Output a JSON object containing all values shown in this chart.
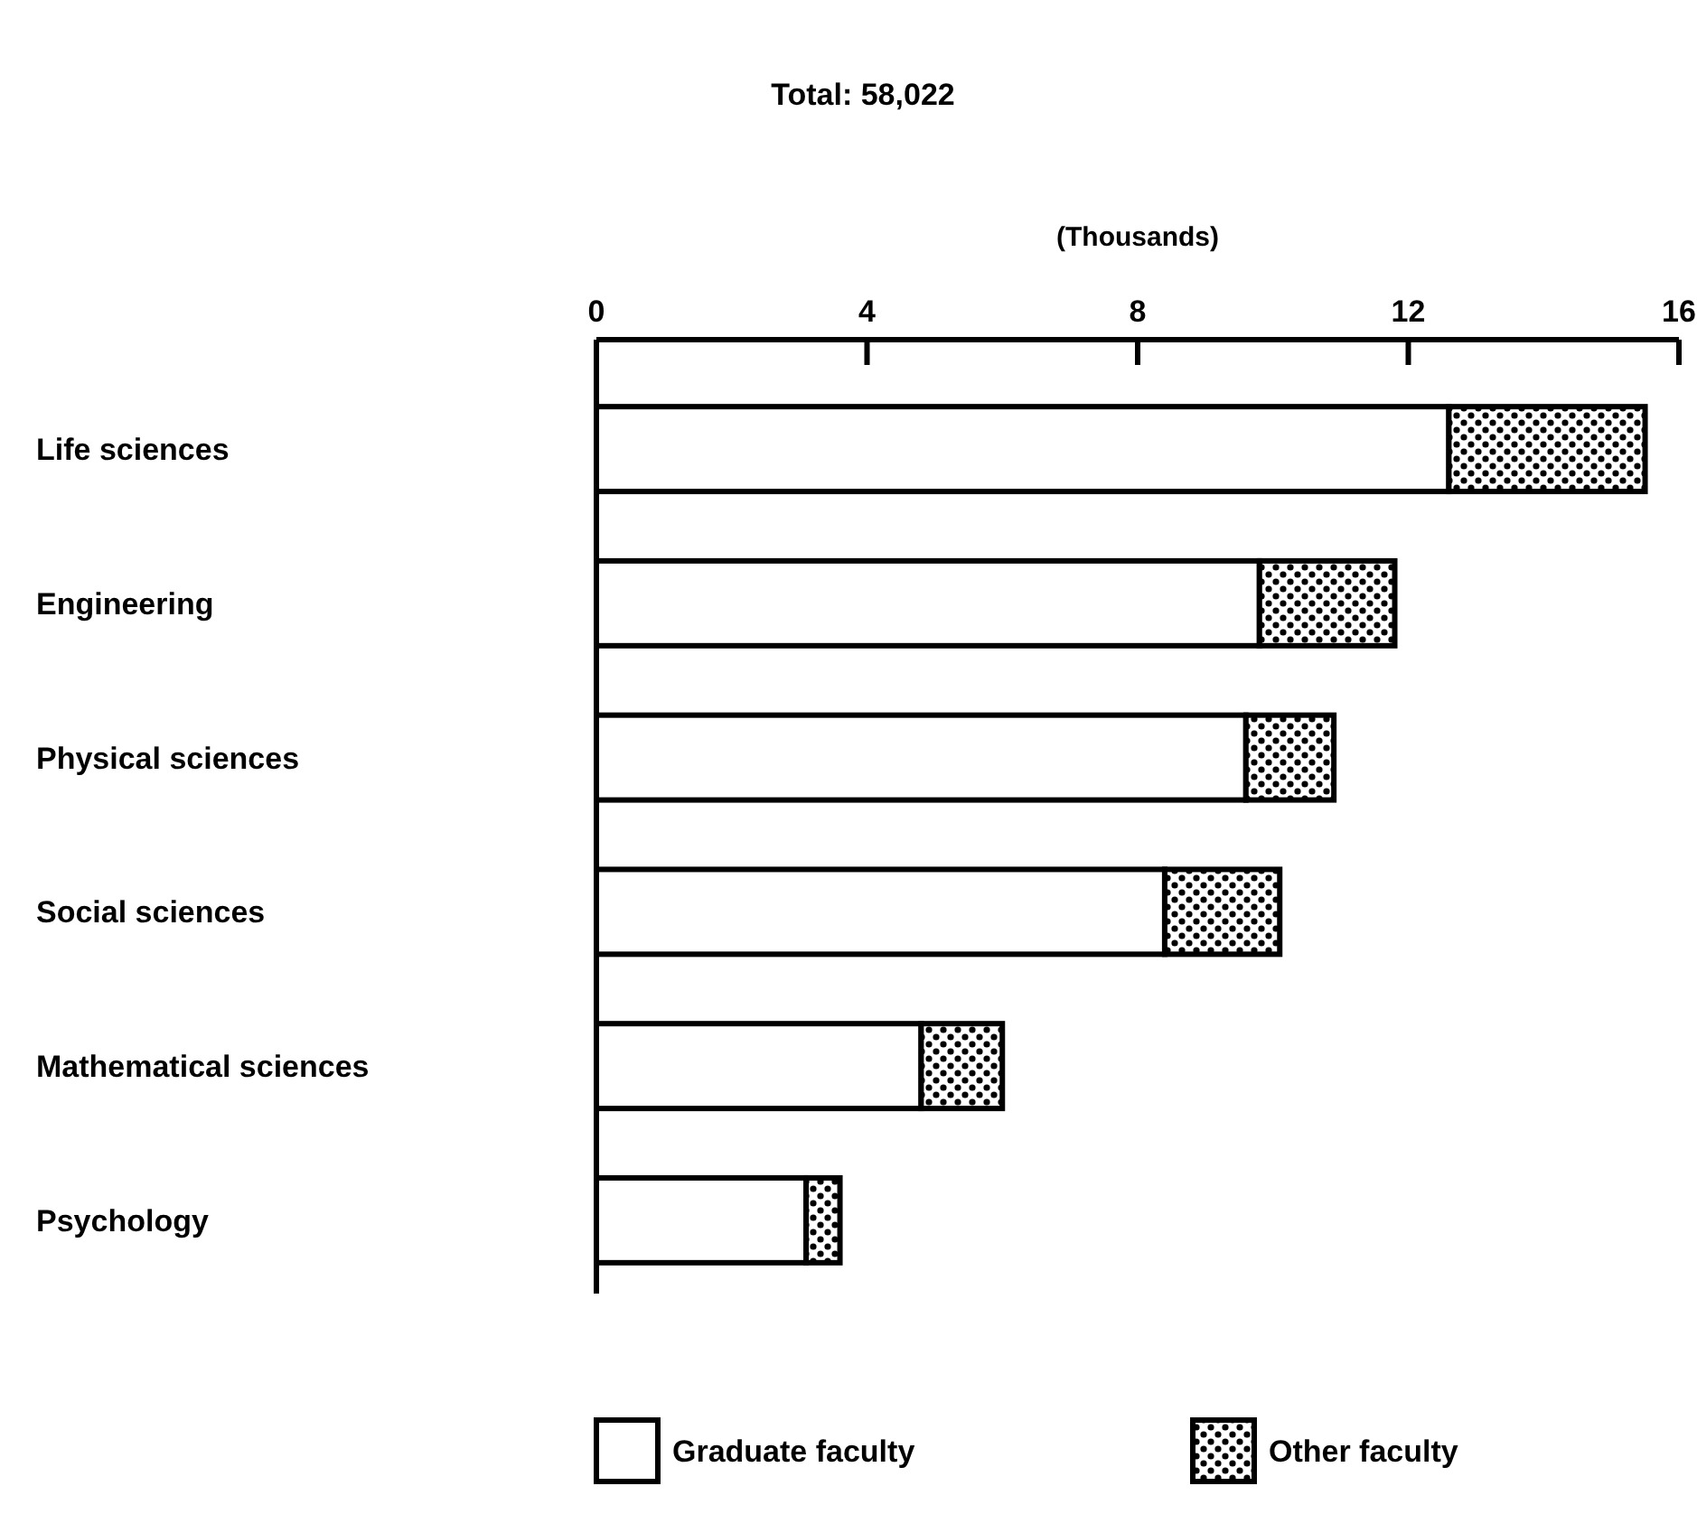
{
  "chart_data": {
    "type": "bar",
    "orientation": "horizontal",
    "stacked": true,
    "title": "Total: 58,022",
    "xlabel": "(Thousands)",
    "categories": [
      "Life sciences",
      "Engineering",
      "Physical sciences",
      "Social sciences",
      "Mathematical sciences",
      "Psychology"
    ],
    "series": [
      {
        "name": "Graduate faculty",
        "color": "#ffffff",
        "values": [
          12.6,
          9.8,
          9.6,
          8.4,
          4.8,
          3.1
        ]
      },
      {
        "name": "Other faculty",
        "color": "#000000",
        "values": [
          2.9,
          2.0,
          1.3,
          1.7,
          1.2,
          0.5
        ]
      }
    ],
    "xlim": [
      0,
      16
    ],
    "xticks": [
      0,
      4,
      8,
      12,
      16
    ],
    "grid": false,
    "legend": "bottom"
  }
}
